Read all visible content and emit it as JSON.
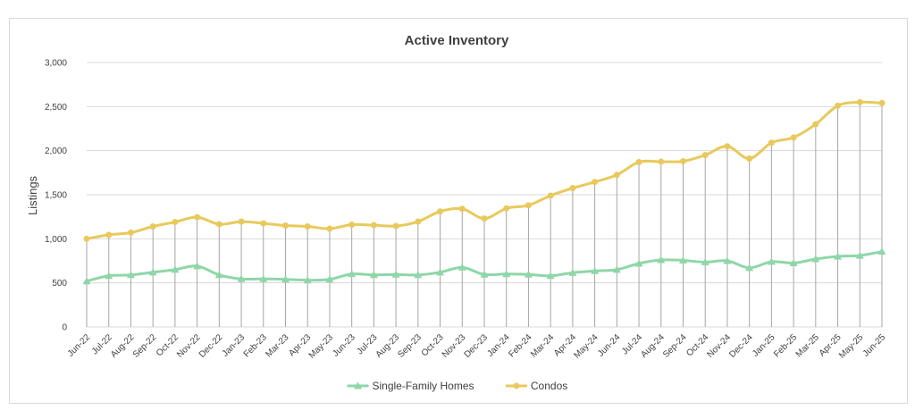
{
  "chart_data": {
    "type": "line",
    "title": "Active Inventory",
    "xlabel": "",
    "ylabel": "Listings",
    "ylim": [
      0,
      3000
    ],
    "yticks": [
      "0",
      "500",
      "1,000",
      "1,500",
      "2,000",
      "2,500",
      "3,000"
    ],
    "grid": "horizontal",
    "drop_lines": true,
    "legend_position": "bottom",
    "categories": [
      "Jun-22",
      "Jul-22",
      "Aug-22",
      "Sep-22",
      "Oct-22",
      "Nov-22",
      "Dec-22",
      "Jan-23",
      "Feb-23",
      "Mar-23",
      "Apr-23",
      "May-23",
      "Jun-23",
      "Jul-23",
      "Aug-23",
      "Sep-23",
      "Oct-23",
      "Nov-23",
      "Dec-23",
      "Jan-24",
      "Feb-24",
      "Mar-24",
      "Apr-24",
      "May-24",
      "Jun-24",
      "Jul-24",
      "Aug-24",
      "Sep-24",
      "Oct-24",
      "Nov-24",
      "Dec-24",
      "Jan-25",
      "Feb-25",
      "Mar-25",
      "Apr-25",
      "May-25",
      "Jun-25"
    ],
    "series": [
      {
        "name": "Single-Family Homes",
        "color": "#8fd6a8",
        "marker": "triangle",
        "values": [
          520,
          580,
          590,
          620,
          650,
          690,
          590,
          545,
          545,
          540,
          530,
          540,
          600,
          590,
          595,
          590,
          620,
          675,
          595,
          600,
          595,
          580,
          615,
          635,
          650,
          720,
          760,
          755,
          735,
          750,
          670,
          740,
          725,
          770,
          800,
          810,
          855
        ]
      },
      {
        "name": "Condos",
        "color": "#e8c95c",
        "marker": "circle",
        "values": [
          1000,
          1045,
          1070,
          1140,
          1190,
          1245,
          1165,
          1195,
          1175,
          1150,
          1140,
          1115,
          1160,
          1155,
          1145,
          1195,
          1310,
          1340,
          1230,
          1345,
          1380,
          1490,
          1575,
          1645,
          1725,
          1870,
          1875,
          1880,
          1950,
          2050,
          1910,
          2090,
          2150,
          2300,
          2510,
          2550,
          2540
        ]
      }
    ]
  },
  "drop_line_color": "#a6a6a6",
  "grid_color": "#d9d9d9"
}
